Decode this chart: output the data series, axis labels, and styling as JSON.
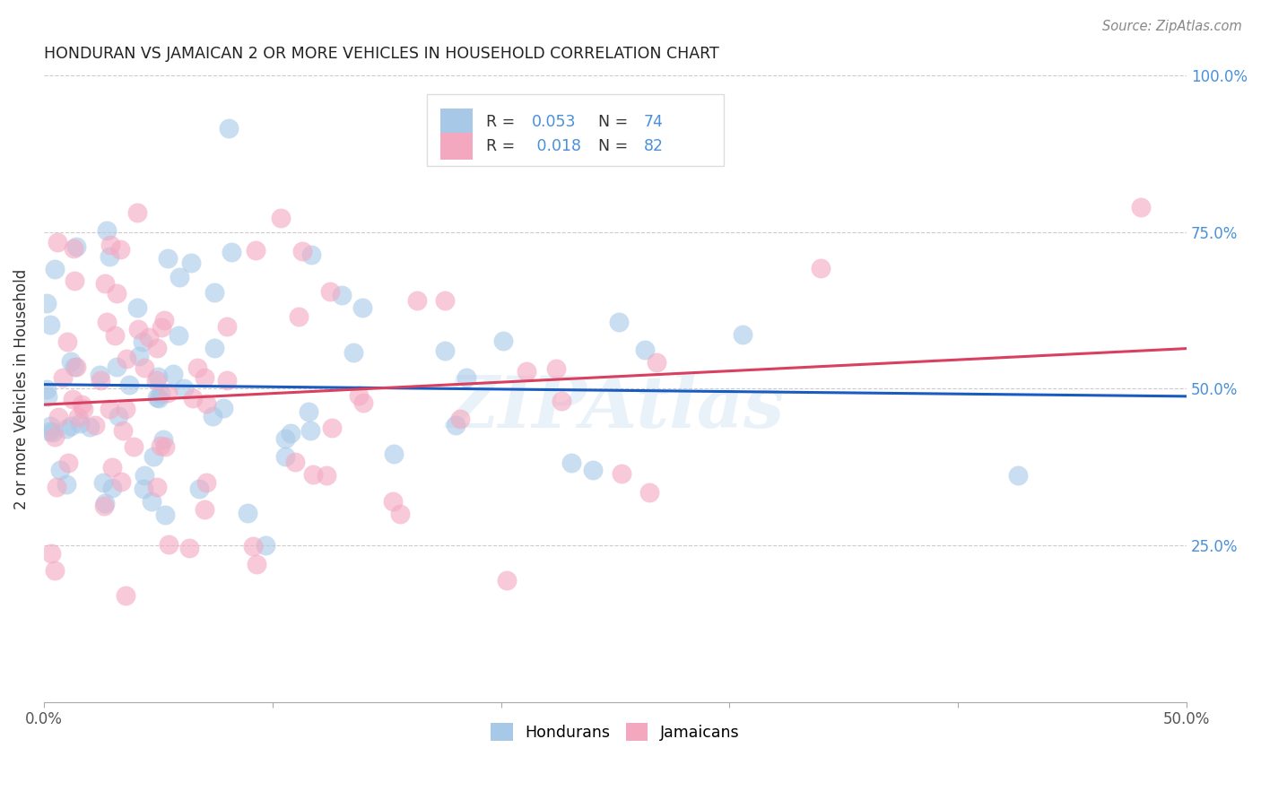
{
  "title": "HONDURAN VS JAMAICAN 2 OR MORE VEHICLES IN HOUSEHOLD CORRELATION CHART",
  "source": "Source: ZipAtlas.com",
  "ylabel": "2 or more Vehicles in Household",
  "xlabel": "",
  "xlim": [
    0.0,
    0.5
  ],
  "ylim": [
    0.0,
    1.0
  ],
  "xticks": [
    0.0,
    0.1,
    0.2,
    0.3,
    0.4,
    0.5
  ],
  "xticklabels": [
    "0.0%",
    "",
    "",
    "",
    "",
    "50.0%"
  ],
  "yticks": [
    0.0,
    0.25,
    0.5,
    0.75,
    1.0
  ],
  "yticklabels_right": [
    "",
    "25.0%",
    "50.0%",
    "75.0%",
    "100.0%"
  ],
  "honduran_R": 0.053,
  "honduran_N": 74,
  "jamaican_R": 0.018,
  "jamaican_N": 82,
  "honduran_color": "#a8c8e8",
  "jamaican_color": "#f4a8c0",
  "honduran_line_color": "#1a5bbf",
  "jamaican_line_color": "#d94060",
  "legend_label_honduran": "Hondurans",
  "legend_label_jamaican": "Jamaicans",
  "watermark": "ZIPAtlas",
  "background_color": "#ffffff",
  "grid_color": "#cccccc",
  "title_color": "#222222",
  "axis_label_color": "#333333",
  "right_tick_color": "#4a90d9",
  "seed_honduran": 12,
  "seed_jamaican": 77
}
